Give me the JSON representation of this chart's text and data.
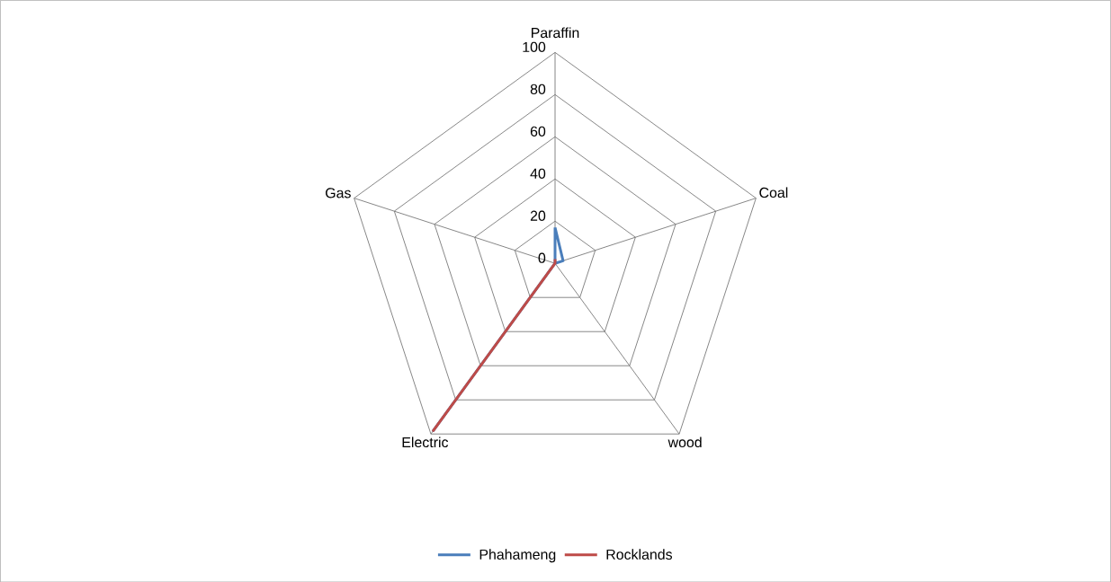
{
  "chart_data": {
    "type": "radar",
    "categories": [
      "Paraffin",
      "Coal",
      "wood",
      "Electric",
      "Gas"
    ],
    "series": [
      {
        "name": "Phahameng",
        "color": "#4a7ebb",
        "values": [
          17,
          4,
          0,
          98,
          0
        ]
      },
      {
        "name": "Rocklands",
        "color": "#be4b48",
        "values": [
          2,
          0,
          0,
          98,
          0
        ]
      }
    ],
    "ylim": [
      0,
      100
    ],
    "yticks": [
      0,
      20,
      40,
      60,
      80,
      100
    ],
    "grid": true,
    "legend": "bottom"
  }
}
